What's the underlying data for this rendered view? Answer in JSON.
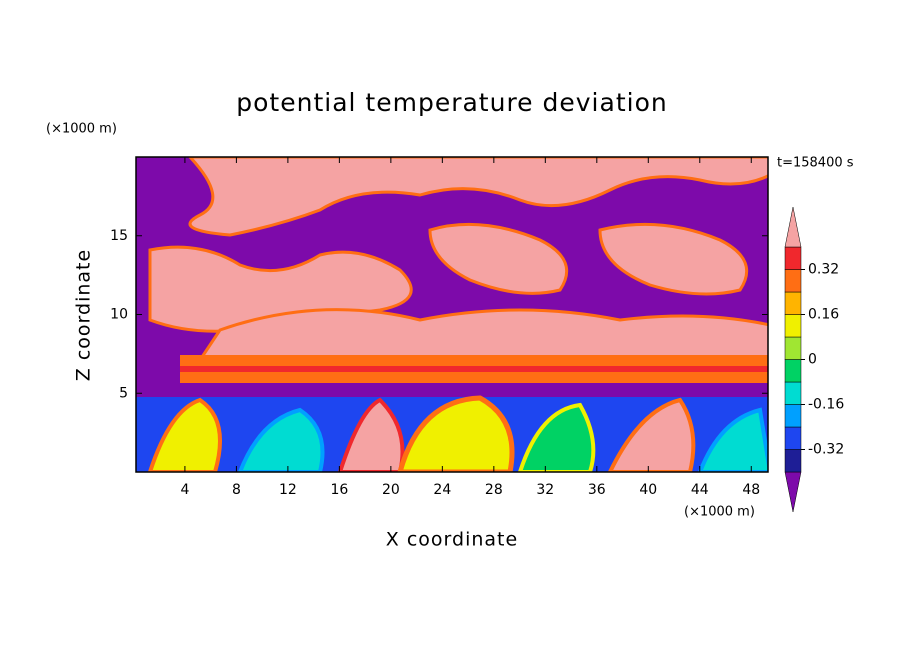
{
  "chart_data": {
    "type": "contour",
    "title": "potential temperature deviation",
    "x_label": "X coordinate",
    "y_label": "Z coordinate",
    "x_unit": "(×1000 m)",
    "y_unit": "(×1000 m)",
    "annotation": "t=158400 s",
    "xlim": [
      0.2,
      49.3
    ],
    "xticks": [
      4,
      8,
      12,
      16,
      20,
      24,
      28,
      32,
      36,
      40,
      44,
      48
    ],
    "ylim": [
      0,
      20
    ],
    "yticks": [
      5,
      10,
      15
    ],
    "levels": [
      -0.4,
      -0.32,
      -0.24,
      -0.16,
      -0.08,
      0,
      0.08,
      0.16,
      0.24,
      0.32,
      0.4
    ],
    "colors": [
      "#7d0aaa",
      "#1e1e96",
      "#1e46f0",
      "#00a0ff",
      "#00dcd2",
      "#00d264",
      "#a0e632",
      "#f0f000",
      "#ffb400",
      "#ff6e14",
      "#f0282d",
      "#f5a3a3"
    ],
    "colorbar_ticks": [
      0.32,
      0.16,
      0,
      -0.16,
      -0.32
    ]
  }
}
